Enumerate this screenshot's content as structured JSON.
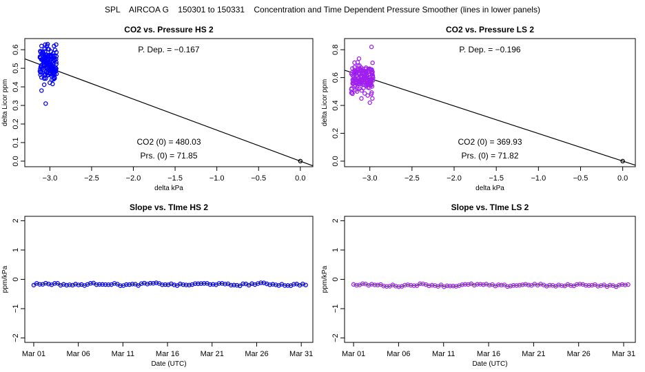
{
  "figure_title": "SPL    AIRCOA G    150301 to 150331    Concentration and Time Dependent Pressure Smoother (lines in lower panels)",
  "colors": {
    "hs": "#0000ff",
    "ls": "#a020f0",
    "line": "#000000"
  },
  "chart_data": [
    {
      "id": "hs_scatter",
      "type": "scatter",
      "title": "CO2 vs. Pressure HS 2",
      "xlabel": "delta kPa",
      "ylabel": "delta Licor ppm",
      "xlim": [
        -3.3,
        0.15
      ],
      "ylim": [
        -0.03,
        0.66
      ],
      "xticks": [
        -3.0,
        -2.5,
        -2.0,
        -1.5,
        -1.0,
        -0.5,
        0.0
      ],
      "xticklabels": [
        "−3.0",
        "−2.5",
        "−2.0",
        "−1.5",
        "−1.0",
        "−0.5",
        "0.0"
      ],
      "yticks": [
        0.0,
        0.1,
        0.2,
        0.3,
        0.4,
        0.5,
        0.6
      ],
      "yticklabels": [
        "0.0",
        "0.1",
        "0.2",
        "0.3",
        "0.4",
        "0.5",
        "0.6"
      ],
      "fit": {
        "slope": -0.167,
        "x0": -3.3,
        "y0": 0.551,
        "x1": 0.15,
        "y1": -0.025
      },
      "cluster": {
        "x_min": -3.12,
        "x_max": -2.92,
        "y_center": 0.52,
        "y_spread": 0.055,
        "n": 150,
        "outliers": [
          [
            -3.05,
            0.31
          ],
          [
            -3.1,
            0.38
          ],
          [
            -2.95,
            0.62
          ],
          [
            -3.1,
            0.62
          ]
        ]
      },
      "origin_point": [
        0.0,
        0.0
      ],
      "annotations": {
        "pdep": "P. Dep. =  −0.167",
        "co2zero": "CO2 (0) =  480.03",
        "prszero": "Prs. (0) = 71.85"
      }
    },
    {
      "id": "ls_scatter",
      "type": "scatter",
      "title": "CO2 vs. Pressure LS 2",
      "xlabel": "delta kPa",
      "ylabel": "delta Licor ppm",
      "xlim": [
        -3.3,
        0.15
      ],
      "ylim": [
        -0.04,
        0.88
      ],
      "xticks": [
        -3.0,
        -2.5,
        -2.0,
        -1.5,
        -1.0,
        -0.5,
        0.0
      ],
      "xticklabels": [
        "−3.0",
        "−2.5",
        "−2.0",
        "−1.5",
        "−1.0",
        "−0.5",
        "0.0"
      ],
      "yticks": [
        0.0,
        0.2,
        0.4,
        0.6,
        0.8
      ],
      "yticklabels": [
        "0.0",
        "0.2",
        "0.4",
        "0.6",
        "0.8"
      ],
      "fit": {
        "slope": -0.196,
        "x0": -3.3,
        "y0": 0.653,
        "x1": 0.15,
        "y1": -0.029
      },
      "cluster": {
        "x_min": -3.22,
        "x_max": -2.96,
        "y_center": 0.6,
        "y_spread": 0.06,
        "n": 160,
        "outliers": [
          [
            -2.98,
            0.82
          ],
          [
            -3.0,
            0.42
          ],
          [
            -2.97,
            0.45
          ],
          [
            -3.1,
            0.45
          ]
        ]
      },
      "origin_point": [
        0.0,
        0.0
      ],
      "annotations": {
        "pdep": "P. Dep. =  −0.196",
        "co2zero": "CO2 (0) =  369.93",
        "prszero": "Prs. (0) = 71.82"
      }
    },
    {
      "id": "hs_slope",
      "type": "line",
      "title": "Slope vs. TIme HS 2",
      "xlabel": "Date (UTC)",
      "ylabel": "ppm/kPa",
      "xlim": [
        0.0,
        32.3
      ],
      "ylim": [
        -2.15,
        2.15
      ],
      "xticks": [
        1,
        6,
        11,
        16,
        21,
        26,
        31
      ],
      "xticklabels": [
        "Mar 01",
        "Mar 06",
        "Mar 11",
        "Mar 16",
        "Mar 21",
        "Mar 26",
        "Mar 31"
      ],
      "yticks": [
        -2,
        -1,
        0,
        1,
        2
      ],
      "yticklabels": [
        "−2",
        "−1",
        "0",
        "1",
        "2"
      ],
      "series": {
        "x_start": 1.0,
        "x_end": 31.5,
        "n": 92,
        "mean": -0.17,
        "amplitude": 0.035
      }
    },
    {
      "id": "ls_slope",
      "type": "line",
      "title": "Slope vs. TIme LS 2",
      "xlabel": "Date (UTC)",
      "ylabel": "ppm/kPa",
      "xlim": [
        0.0,
        32.3
      ],
      "ylim": [
        -2.15,
        2.15
      ],
      "xticks": [
        1,
        6,
        11,
        16,
        21,
        26,
        31
      ],
      "xticklabels": [
        "Mar 01",
        "Mar 06",
        "Mar 11",
        "Mar 16",
        "Mar 21",
        "Mar 26",
        "Mar 31"
      ],
      "yticks": [
        -2,
        -1,
        0,
        1,
        2
      ],
      "yticklabels": [
        "−2",
        "−1",
        "0",
        "1",
        "2"
      ],
      "series": {
        "x_start": 1.0,
        "x_end": 31.5,
        "n": 92,
        "mean": -0.2,
        "amplitude": 0.035
      }
    }
  ]
}
